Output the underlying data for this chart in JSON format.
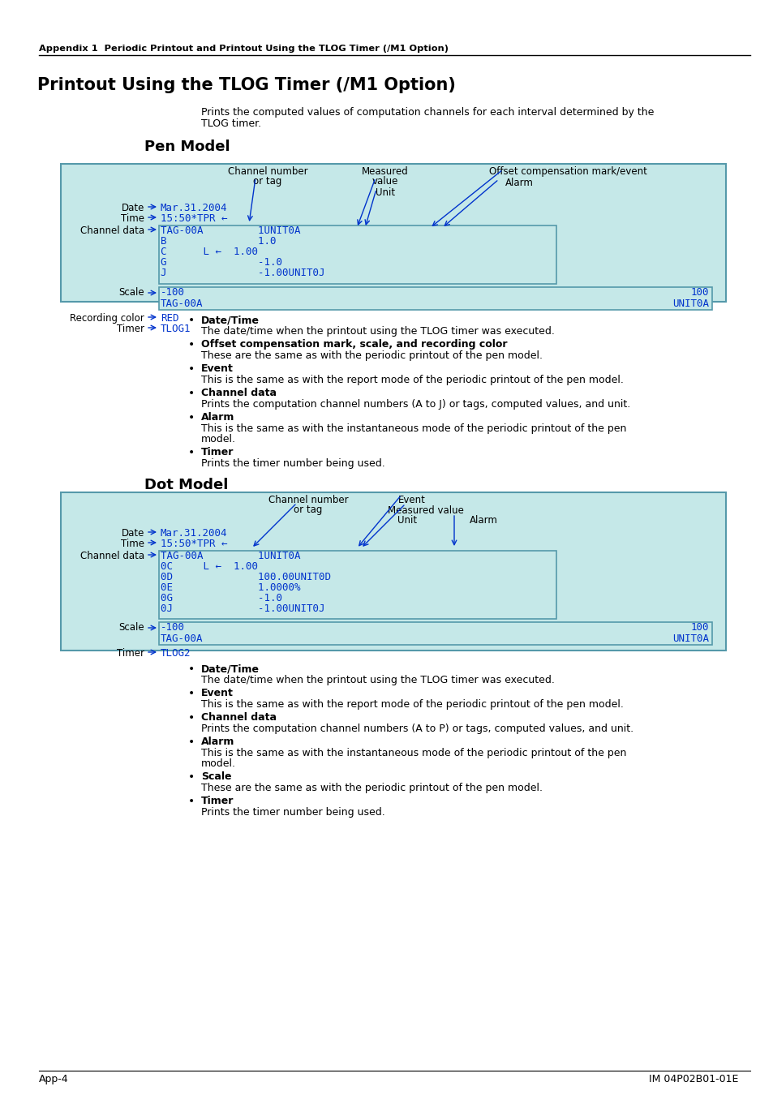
{
  "page_bg": "#ffffff",
  "header_text": "Appendix 1  Periodic Printout and Printout Using the TLOG Timer (/M1 Option)",
  "title": "Printout Using the TLOG Timer (/M1 Option)",
  "intro_line1": "Prints the computed values of computation channels for each interval determined by the",
  "intro_line2": "TLOG timer.",
  "pen_model_title": "Pen Model",
  "dot_model_title": "Dot Model",
  "footer_left": "App-4",
  "footer_right": "IM 04P02B01-01E",
  "cyan_bg": "#c5e8e8",
  "box_border": "#5599aa",
  "blue_text": "#0033cc",
  "arrow_color": "#0033cc",
  "pen_bullets": [
    {
      "title": "Date/Time",
      "text": "The date/time when the printout using the TLOG timer was executed."
    },
    {
      "title": "Offset compensation mark, scale, and recording color",
      "text": "These are the same as with the periodic printout of the pen model."
    },
    {
      "title": "Event",
      "text": "This is the same as with the report mode of the periodic printout of the pen model."
    },
    {
      "title": "Channel data",
      "text": "Prints the computation channel numbers (A to J) or tags, computed values, and unit."
    },
    {
      "title": "Alarm",
      "text": "This is the same as with the instantaneous mode of the periodic printout of the pen\nmodel."
    },
    {
      "title": "Timer",
      "text": "Prints the timer number being used."
    }
  ],
  "dot_bullets": [
    {
      "title": "Date/Time",
      "text": "The date/time when the printout using the TLOG timer was executed."
    },
    {
      "title": "Event",
      "text": "This is the same as with the report mode of the periodic printout of the pen model."
    },
    {
      "title": "Channel data",
      "text": "Prints the computation channel numbers (A to P) or tags, computed values, and unit."
    },
    {
      "title": "Alarm",
      "text": "This is the same as with the instantaneous mode of the periodic printout of the pen\nmodel."
    },
    {
      "title": "Scale",
      "text": "These are the same as with the periodic printout of the pen model."
    },
    {
      "title": "Timer",
      "text": "Prints the timer number being used."
    }
  ]
}
